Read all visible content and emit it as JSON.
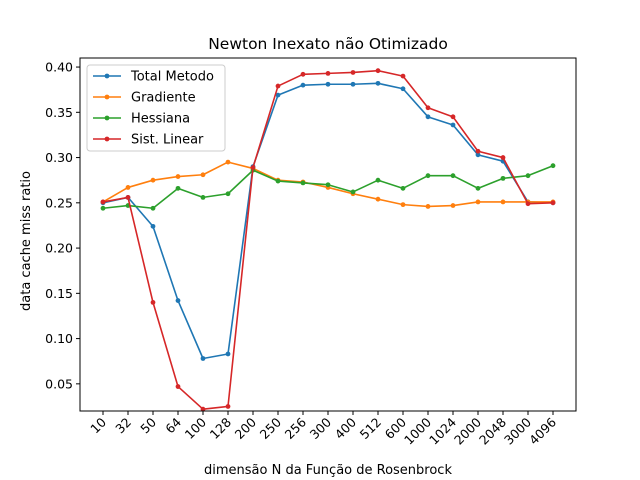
{
  "chart_data": {
    "type": "line",
    "title": "Newton Inexato não Otimizado",
    "xlabel": "dimensão N da Função de Rosenbrock",
    "ylabel": "data cache miss ratio",
    "categories": [
      "10",
      "32",
      "50",
      "64",
      "100",
      "128",
      "200",
      "250",
      "256",
      "300",
      "400",
      "512",
      "600",
      "1000",
      "1024",
      "2000",
      "2048",
      "3000",
      "4096"
    ],
    "ylim": [
      0.02,
      0.41
    ],
    "yticks": [
      0.05,
      0.1,
      0.15,
      0.2,
      0.25,
      0.3,
      0.35,
      0.4
    ],
    "ytick_labels": [
      "0.05",
      "0.10",
      "0.15",
      "0.20",
      "0.25",
      "0.30",
      "0.35",
      "0.40"
    ],
    "grid": false,
    "legend_position": "top-left",
    "series": [
      {
        "name": "Total Metodo",
        "color": "#1f77b4",
        "values": [
          0.25,
          0.256,
          0.224,
          0.142,
          0.078,
          0.083,
          0.29,
          0.369,
          0.38,
          0.381,
          0.381,
          0.382,
          0.376,
          0.345,
          0.336,
          0.303,
          0.296,
          0.251,
          0.25
        ]
      },
      {
        "name": "Gradiente",
        "color": "#ff7f0e",
        "values": [
          0.251,
          0.267,
          0.275,
          0.279,
          0.281,
          0.295,
          0.288,
          0.275,
          0.273,
          0.267,
          0.26,
          0.254,
          0.248,
          0.246,
          0.247,
          0.251,
          0.251,
          0.251,
          0.251
        ]
      },
      {
        "name": "Hessiana",
        "color": "#2ca02c",
        "values": [
          0.244,
          0.247,
          0.244,
          0.266,
          0.256,
          0.26,
          0.286,
          0.274,
          0.272,
          0.27,
          0.262,
          0.275,
          0.266,
          0.28,
          0.28,
          0.266,
          0.277,
          0.28,
          0.291
        ]
      },
      {
        "name": "Sist. Linear",
        "color": "#d62728",
        "values": [
          0.251,
          0.256,
          0.14,
          0.047,
          0.022,
          0.025,
          0.289,
          0.379,
          0.392,
          0.393,
          0.394,
          0.396,
          0.39,
          0.355,
          0.345,
          0.307,
          0.3,
          0.249,
          0.25
        ]
      }
    ]
  }
}
